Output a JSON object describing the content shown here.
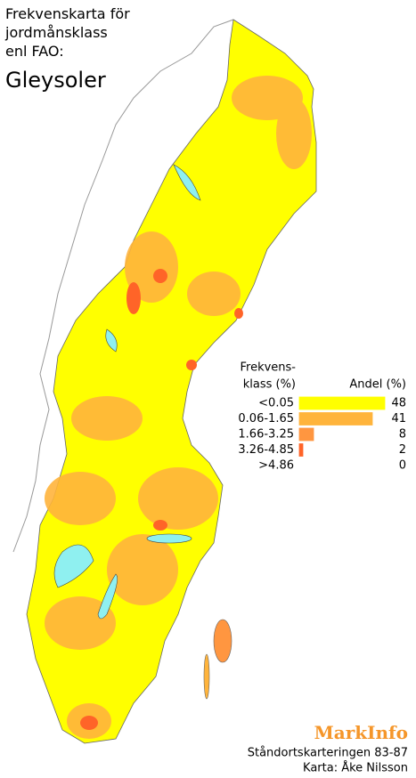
{
  "title": {
    "lines": [
      "Frekvenskarta för",
      "jordmånsklass",
      "enl FAO:"
    ],
    "subject": "Gleysoler"
  },
  "legend": {
    "class_header": [
      "Frekvens-",
      "klass (%)"
    ],
    "share_header": "Andel (%)",
    "rows": [
      {
        "class": "<0.05",
        "share": 48,
        "color": "#ffff00"
      },
      {
        "class": "0.06-1.65",
        "share": 41,
        "color": "#ffb43c"
      },
      {
        "class": "1.66-3.25",
        "share": 8,
        "color": "#ff9640"
      },
      {
        "class": "3.26-4.85",
        "share": 2,
        "color": "#ff6428"
      },
      {
        "class": ">4.86",
        "share": 0,
        "color": "#e0285a"
      }
    ]
  },
  "credits": {
    "brand": "MarkInfo",
    "survey": "Ståndortskarteringen 83-87",
    "author": "Karta: Åke Nilsson"
  }
}
